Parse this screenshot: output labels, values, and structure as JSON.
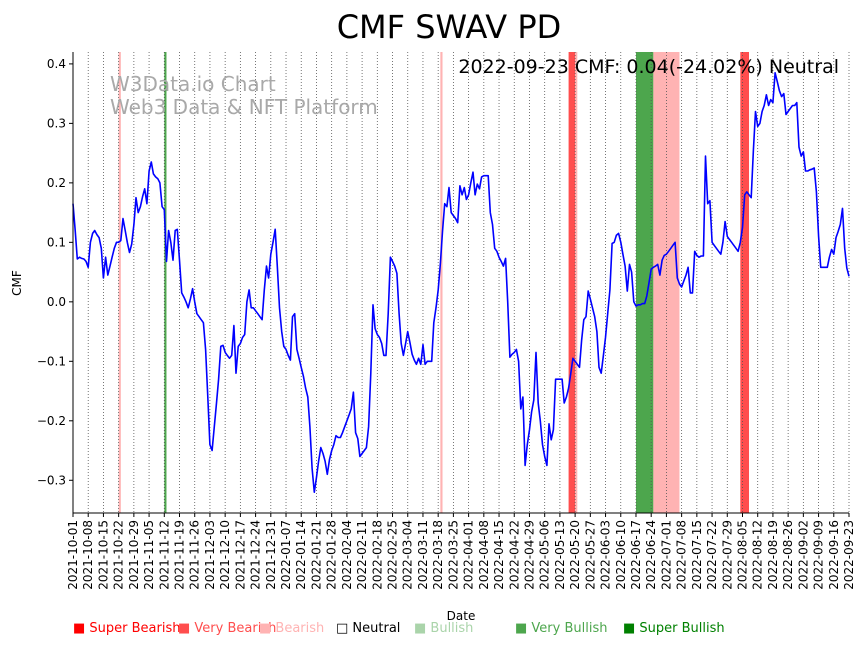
{
  "chart_data": {
    "type": "line",
    "title": "CMF SWAV PD",
    "xlabel": "Date",
    "ylabel": "CMF",
    "ylim": [
      -0.355,
      0.42
    ],
    "yticks": [
      -0.3,
      -0.2,
      -0.1,
      0.0,
      0.1,
      0.2,
      0.3,
      0.4
    ],
    "ytick_labels": [
      "−0.3",
      "−0.2",
      "−0.1",
      "0.0",
      "0.1",
      "0.2",
      "0.3",
      "0.4"
    ],
    "xlim": [
      "2021-10-01",
      "2022-09-23"
    ],
    "xticks": [
      "2021-10-01",
      "2021-10-08",
      "2021-10-15",
      "2021-10-22",
      "2021-10-29",
      "2021-11-05",
      "2021-11-12",
      "2021-11-19",
      "2021-11-26",
      "2021-12-03",
      "2021-12-10",
      "2021-12-17",
      "2021-12-24",
      "2021-12-31",
      "2022-01-07",
      "2022-01-14",
      "2022-01-21",
      "2022-01-28",
      "2022-02-04",
      "2022-02-11",
      "2022-02-18",
      "2022-02-25",
      "2022-03-04",
      "2022-03-11",
      "2022-03-18",
      "2022-03-25",
      "2022-04-01",
      "2022-04-08",
      "2022-04-15",
      "2022-04-22",
      "2022-04-29",
      "2022-05-06",
      "2022-05-13",
      "2022-05-20",
      "2022-05-27",
      "2022-06-03",
      "2022-06-10",
      "2022-06-17",
      "2022-06-24",
      "2022-07-01",
      "2022-07-08",
      "2022-07-15",
      "2022-07-22",
      "2022-07-29",
      "2022-08-05",
      "2022-08-12",
      "2022-08-19",
      "2022-08-26",
      "2022-09-02",
      "2022-09-09",
      "2022-09-16",
      "2022-09-23"
    ],
    "grid": "vertical-dotted",
    "annotation": "2022-09-23 CMF: 0.04(-24.02%) Neutral",
    "watermark": [
      "W3Data.io Chart",
      "Web3 Data & NFT Platform"
    ],
    "colors": {
      "line": "#0000ff",
      "super_bearish": "#ff0000",
      "very_bearish": "#ff4d4d",
      "bearish": "#ffb3b3",
      "very_bullish": "#4da64d",
      "super_bullish": "#008000",
      "bullish": "#aad4aa",
      "watermark": "#a9a9a9"
    },
    "bands": [
      {
        "start": "2021-10-22",
        "end": "2021-10-23",
        "kind": "bearish"
      },
      {
        "start": "2021-11-12",
        "end": "2021-11-13",
        "kind": "very_bullish"
      },
      {
        "start": "2022-03-19",
        "end": "2022-03-20",
        "kind": "bearish"
      },
      {
        "start": "2022-05-17",
        "end": "2022-05-20",
        "kind": "very_bearish"
      },
      {
        "start": "2022-05-20",
        "end": "2022-05-21",
        "kind": "bearish"
      },
      {
        "start": "2022-06-17",
        "end": "2022-06-25",
        "kind": "very_bullish"
      },
      {
        "start": "2022-06-25",
        "end": "2022-07-07",
        "kind": "bearish"
      },
      {
        "start": "2022-08-04",
        "end": "2022-08-08",
        "kind": "very_bearish"
      }
    ],
    "series": [
      {
        "x": [
          "2021-10-01",
          "2021-10-02",
          "2021-10-03",
          "2021-10-04",
          "2021-10-05",
          "2021-10-06",
          "2021-10-07",
          "2021-10-08",
          "2021-10-09",
          "2021-10-10",
          "2021-10-11",
          "2021-10-12",
          "2021-10-13",
          "2021-10-14",
          "2021-10-15",
          "2021-10-16",
          "2021-10-17",
          "2021-10-18",
          "2021-10-19",
          "2021-10-20",
          "2021-10-21",
          "2021-10-22",
          "2021-10-23",
          "2021-10-24",
          "2021-10-25",
          "2021-10-26",
          "2021-10-27",
          "2021-10-28",
          "2021-10-29",
          "2021-10-30",
          "2021-10-31",
          "2021-11-01",
          "2021-11-02",
          "2021-11-03",
          "2021-11-04",
          "2021-11-05",
          "2021-11-06",
          "2021-11-07",
          "2021-11-08",
          "2021-11-09",
          "2021-11-10",
          "2021-11-11",
          "2021-11-12",
          "2021-11-13",
          "2021-11-14",
          "2021-11-15",
          "2021-11-16",
          "2021-11-17",
          "2021-11-18",
          "2021-11-19",
          "2021-11-20",
          "2021-11-21",
          "2021-11-22",
          "2021-11-23",
          "2021-11-24",
          "2021-11-25",
          "2021-11-26",
          "2021-11-27",
          "2021-11-28",
          "2021-11-29",
          "2021-11-30",
          "2021-12-01",
          "2021-12-02",
          "2021-12-03",
          "2021-12-04",
          "2021-12-05",
          "2021-12-06",
          "2021-12-07",
          "2021-12-08",
          "2021-12-09",
          "2021-12-10",
          "2021-12-11",
          "2021-12-12",
          "2021-12-13",
          "2021-12-14",
          "2021-12-15",
          "2021-12-16",
          "2021-12-17",
          "2021-12-18",
          "2021-12-19",
          "2021-12-20",
          "2021-12-21",
          "2021-12-22",
          "2021-12-23",
          "2021-12-24",
          "2021-12-25",
          "2021-12-26",
          "2021-12-27",
          "2021-12-28",
          "2021-12-29",
          "2021-12-30",
          "2021-12-31",
          "2022-01-01",
          "2022-01-02",
          "2022-01-03",
          "2022-01-04",
          "2022-01-05",
          "2022-01-06",
          "2022-01-07",
          "2022-01-08",
          "2022-01-09",
          "2022-01-10",
          "2022-01-11",
          "2022-01-12",
          "2022-01-13",
          "2022-01-14",
          "2022-01-15",
          "2022-01-16",
          "2022-01-17",
          "2022-01-18",
          "2022-01-19",
          "2022-01-20",
          "2022-01-21",
          "2022-01-22",
          "2022-01-23",
          "2022-01-24",
          "2022-01-25",
          "2022-01-26",
          "2022-01-27",
          "2022-01-28",
          "2022-01-29",
          "2022-01-30",
          "2022-01-31",
          "2022-02-01",
          "2022-02-02",
          "2022-02-03",
          "2022-02-04",
          "2022-02-05",
          "2022-02-06",
          "2022-02-07",
          "2022-02-08",
          "2022-02-09",
          "2022-02-10",
          "2022-02-11",
          "2022-02-12",
          "2022-02-13",
          "2022-02-14",
          "2022-02-15",
          "2022-02-16",
          "2022-02-17",
          "2022-02-18",
          "2022-02-19",
          "2022-02-20",
          "2022-02-21",
          "2022-02-22",
          "2022-02-23",
          "2022-02-24",
          "2022-02-25",
          "2022-02-26",
          "2022-02-27",
          "2022-02-28",
          "2022-03-01",
          "2022-03-02",
          "2022-03-03",
          "2022-03-04",
          "2022-03-05",
          "2022-03-06",
          "2022-03-07",
          "2022-03-08",
          "2022-03-09",
          "2022-03-10",
          "2022-03-11",
          "2022-03-12",
          "2022-03-13",
          "2022-03-14",
          "2022-03-15",
          "2022-03-16",
          "2022-03-17",
          "2022-03-18",
          "2022-03-19",
          "2022-03-20",
          "2022-03-21",
          "2022-03-22",
          "2022-03-23",
          "2022-03-24",
          "2022-03-25",
          "2022-03-26",
          "2022-03-27",
          "2022-03-28",
          "2022-03-29",
          "2022-03-30",
          "2022-03-31",
          "2022-04-01",
          "2022-04-02",
          "2022-04-03",
          "2022-04-04",
          "2022-04-05",
          "2022-04-06",
          "2022-04-07",
          "2022-04-08",
          "2022-04-09",
          "2022-04-10",
          "2022-04-11",
          "2022-04-12",
          "2022-04-13",
          "2022-04-14",
          "2022-04-15",
          "2022-04-16",
          "2022-04-17",
          "2022-04-18",
          "2022-04-19",
          "2022-04-20",
          "2022-04-21",
          "2022-04-22",
          "2022-04-23",
          "2022-04-24",
          "2022-04-25",
          "2022-04-26",
          "2022-04-27",
          "2022-04-28",
          "2022-04-29",
          "2022-04-30",
          "2022-05-01",
          "2022-05-02",
          "2022-05-03",
          "2022-05-04",
          "2022-05-05",
          "2022-05-06",
          "2022-05-07",
          "2022-05-08",
          "2022-05-09",
          "2022-05-10",
          "2022-05-11",
          "2022-05-12",
          "2022-05-13",
          "2022-05-14",
          "2022-05-15",
          "2022-05-16",
          "2022-05-17",
          "2022-05-18",
          "2022-05-19",
          "2022-05-20",
          "2022-05-21",
          "2022-05-22",
          "2022-05-23",
          "2022-05-24",
          "2022-05-25",
          "2022-05-26",
          "2022-05-27",
          "2022-05-28",
          "2022-05-29",
          "2022-05-30",
          "2022-05-31",
          "2022-06-01",
          "2022-06-02",
          "2022-06-03",
          "2022-06-04",
          "2022-06-05",
          "2022-06-06",
          "2022-06-07",
          "2022-06-08",
          "2022-06-09",
          "2022-06-10",
          "2022-06-11",
          "2022-06-12",
          "2022-06-13",
          "2022-06-14",
          "2022-06-15",
          "2022-06-16",
          "2022-06-17",
          "2022-06-18",
          "2022-06-19",
          "2022-06-20",
          "2022-06-21",
          "2022-06-22",
          "2022-06-23",
          "2022-06-24",
          "2022-06-25",
          "2022-06-26",
          "2022-06-27",
          "2022-06-28",
          "2022-06-29",
          "2022-06-30",
          "2022-07-01",
          "2022-07-02",
          "2022-07-03",
          "2022-07-04",
          "2022-07-05",
          "2022-07-06",
          "2022-07-07",
          "2022-07-08",
          "2022-07-09",
          "2022-07-10",
          "2022-07-11",
          "2022-07-12",
          "2022-07-13",
          "2022-07-14",
          "2022-07-15",
          "2022-07-16",
          "2022-07-17",
          "2022-07-18",
          "2022-07-19",
          "2022-07-20",
          "2022-07-21",
          "2022-07-22",
          "2022-07-23",
          "2022-07-24",
          "2022-07-25",
          "2022-07-26",
          "2022-07-27",
          "2022-07-28",
          "2022-07-29",
          "2022-07-30",
          "2022-07-31",
          "2022-08-01",
          "2022-08-02",
          "2022-08-03",
          "2022-08-04",
          "2022-08-05",
          "2022-08-06",
          "2022-08-07",
          "2022-08-08",
          "2022-08-09",
          "2022-08-10",
          "2022-08-11",
          "2022-08-12",
          "2022-08-13",
          "2022-08-14",
          "2022-08-15",
          "2022-08-16",
          "2022-08-17",
          "2022-08-18",
          "2022-08-19",
          "2022-08-20",
          "2022-08-21",
          "2022-08-22",
          "2022-08-23",
          "2022-08-24",
          "2022-08-25",
          "2022-08-26",
          "2022-08-27",
          "2022-08-28",
          "2022-08-29",
          "2022-08-30",
          "2022-08-31",
          "2022-09-01",
          "2022-09-02",
          "2022-09-03",
          "2022-09-04",
          "2022-09-05",
          "2022-09-06",
          "2022-09-07",
          "2022-09-08",
          "2022-09-09",
          "2022-09-10",
          "2022-09-11",
          "2022-09-12",
          "2022-09-13",
          "2022-09-14",
          "2022-09-15",
          "2022-09-16",
          "2022-09-17",
          "2022-09-18",
          "2022-09-19",
          "2022-09-20",
          "2022-09-21",
          "2022-09-22",
          "2022-09-23"
        ],
        "y": [
          0.165,
          0.12,
          0.072,
          0.075,
          0.073,
          0.072,
          0.068,
          0.058,
          0.1,
          0.115,
          0.12,
          0.113,
          0.108,
          0.09,
          0.04,
          0.075,
          0.045,
          0.06,
          0.075,
          0.09,
          0.1,
          0.1,
          0.103,
          0.14,
          0.12,
          0.1,
          0.083,
          0.097,
          0.13,
          0.175,
          0.15,
          0.16,
          0.177,
          0.19,
          0.165,
          0.22,
          0.235,
          0.215,
          0.21,
          0.207,
          0.2,
          0.16,
          0.155,
          0.068,
          0.12,
          0.1,
          0.07,
          0.12,
          0.122,
          0.07,
          0.015,
          0.008,
          0.0,
          -0.01,
          0.005,
          0.022,
          0.0,
          -0.02,
          -0.025,
          -0.03,
          -0.035,
          -0.08,
          -0.16,
          -0.24,
          -0.25,
          -0.21,
          -0.17,
          -0.13,
          -0.075,
          -0.073,
          -0.085,
          -0.09,
          -0.095,
          -0.09,
          -0.04,
          -0.12,
          -0.075,
          -0.07,
          -0.06,
          -0.055,
          0.0,
          0.02,
          -0.01,
          -0.01,
          -0.015,
          -0.02,
          -0.025,
          -0.03,
          0.02,
          0.06,
          0.04,
          0.08,
          0.1,
          0.122,
          0.06,
          -0.01,
          -0.05,
          -0.075,
          -0.08,
          -0.09,
          -0.098,
          -0.025,
          -0.02,
          -0.08,
          -0.095,
          -0.11,
          -0.125,
          -0.145,
          -0.16,
          -0.21,
          -0.28,
          -0.32,
          -0.295,
          -0.268,
          -0.245,
          -0.255,
          -0.268,
          -0.29,
          -0.265,
          -0.25,
          -0.24,
          -0.225,
          -0.228,
          -0.228,
          -0.22,
          -0.21,
          -0.2,
          -0.19,
          -0.18,
          -0.152,
          -0.22,
          -0.23,
          -0.26,
          -0.255,
          -0.25,
          -0.245,
          -0.21,
          -0.12,
          -0.005,
          -0.045,
          -0.055,
          -0.06,
          -0.07,
          -0.09,
          -0.09,
          -0.02,
          0.075,
          0.068,
          0.06,
          0.048,
          -0.02,
          -0.07,
          -0.09,
          -0.07,
          -0.05,
          -0.068,
          -0.088,
          -0.098,
          -0.105,
          -0.095,
          -0.105,
          -0.072,
          -0.105,
          -0.1,
          -0.1,
          -0.1,
          -0.035,
          -0.01,
          0.02,
          0.065,
          0.118,
          0.165,
          0.16,
          0.192,
          0.15,
          0.145,
          0.14,
          0.133,
          0.195,
          0.18,
          0.192,
          0.172,
          0.18,
          0.2,
          0.218,
          0.18,
          0.198,
          0.19,
          0.21,
          0.212,
          0.212,
          0.212,
          0.15,
          0.13,
          0.09,
          0.085,
          0.075,
          0.068,
          0.06,
          0.073,
          0.0,
          -0.093,
          -0.088,
          -0.085,
          -0.08,
          -0.1,
          -0.18,
          -0.16,
          -0.275,
          -0.24,
          -0.215,
          -0.185,
          -0.165,
          -0.085,
          -0.17,
          -0.2,
          -0.24,
          -0.26,
          -0.275,
          -0.205,
          -0.232,
          -0.215,
          -0.13,
          -0.13,
          -0.13,
          -0.13,
          -0.17,
          -0.16,
          -0.145,
          -0.12,
          -0.095,
          -0.1,
          -0.105,
          -0.11,
          -0.065,
          -0.03,
          -0.025,
          0.018,
          0.005,
          -0.01,
          -0.025,
          -0.05,
          -0.11,
          -0.12,
          -0.09,
          -0.06,
          -0.02,
          0.02,
          0.098,
          0.1,
          0.112,
          0.115,
          0.1,
          0.08,
          0.06,
          0.018,
          0.063,
          0.05,
          0.0,
          -0.007,
          -0.005,
          -0.005,
          -0.003,
          -0.003,
          0.01,
          0.032,
          0.055,
          0.058,
          0.06,
          0.063,
          0.045,
          0.07,
          0.078,
          0.08,
          0.085,
          0.09,
          0.095,
          0.1,
          0.04,
          0.03,
          0.025,
          0.035,
          0.045,
          0.058,
          0.015,
          0.015,
          0.085,
          0.078,
          0.075,
          0.077,
          0.077,
          0.245,
          0.165,
          0.17,
          0.1,
          0.095,
          0.09,
          0.085,
          0.08,
          0.1,
          0.135,
          0.11,
          0.105,
          0.1,
          0.095,
          0.09,
          0.085,
          0.1,
          0.125,
          0.18,
          0.185,
          0.18,
          0.175,
          0.255,
          0.32,
          0.295,
          0.3,
          0.32,
          0.33,
          0.348,
          0.33,
          0.34,
          0.335,
          0.385,
          0.37,
          0.355,
          0.345,
          0.35,
          0.315,
          0.32,
          0.325,
          0.33,
          0.33,
          0.335,
          0.26,
          0.245,
          0.252,
          0.22,
          0.22,
          0.222,
          0.223,
          0.225,
          0.185,
          0.11,
          0.058,
          0.058,
          0.058,
          0.058,
          0.075,
          0.088,
          0.08,
          0.108,
          0.118,
          0.13,
          0.157,
          0.09,
          0.057,
          0.043
        ]
      }
    ],
    "legend": {
      "placement": "bottom",
      "items": [
        {
          "label": "Super Bearish",
          "color": "#ff0000"
        },
        {
          "label": "Very Bearish",
          "color": "#ff4d4d"
        },
        {
          "label": "Bearish",
          "color": "#ffb3b3"
        },
        {
          "label": "Neutral",
          "color": "#000000",
          "marker": "□"
        },
        {
          "label": "Bullish",
          "color": "#aad4aa"
        },
        {
          "label": "Very Bullish",
          "color": "#4da64d"
        },
        {
          "label": "Super Bullish",
          "color": "#008000"
        }
      ],
      "marker": "■"
    }
  }
}
